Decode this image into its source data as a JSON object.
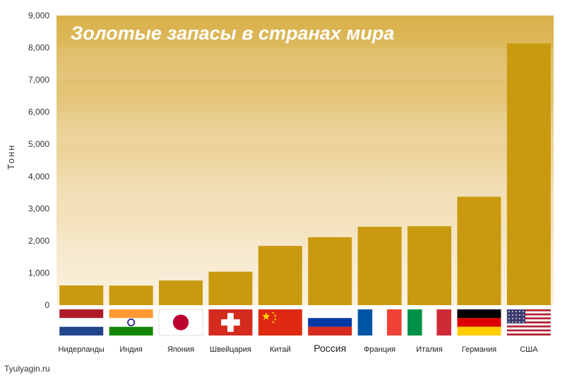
{
  "chart_data": {
    "type": "bar",
    "title": "Золотые запасы в странах мира",
    "ylabel": "Тонн",
    "xlabel": "",
    "ylim": [
      0,
      9000
    ],
    "yticks": [
      "0",
      "1,000",
      "2,000",
      "3,000",
      "4,000",
      "5,000",
      "6,000",
      "7,000",
      "8,000",
      "9,000"
    ],
    "grid": false,
    "categories": [
      "Нидерланды",
      "Индия",
      "Япония",
      "Швейцария",
      "Китай",
      "Россия",
      "Франция",
      "Италия",
      "Германия",
      "США"
    ],
    "values": [
      612,
      608,
      765,
      1040,
      1842,
      2110,
      2436,
      2452,
      3370,
      8133
    ],
    "flags": [
      "netherlands-flag",
      "india-flag",
      "japan-flag",
      "switzerland-flag",
      "china-flag",
      "russia-flag",
      "france-flag",
      "italy-flag",
      "germany-flag",
      "usa-flag"
    ],
    "colors": {
      "bar": "#c99a10",
      "background_top": "#d9b14a",
      "background_bottom": "#fbf2e1"
    }
  },
  "watermark": "Tyulyagin.ru"
}
